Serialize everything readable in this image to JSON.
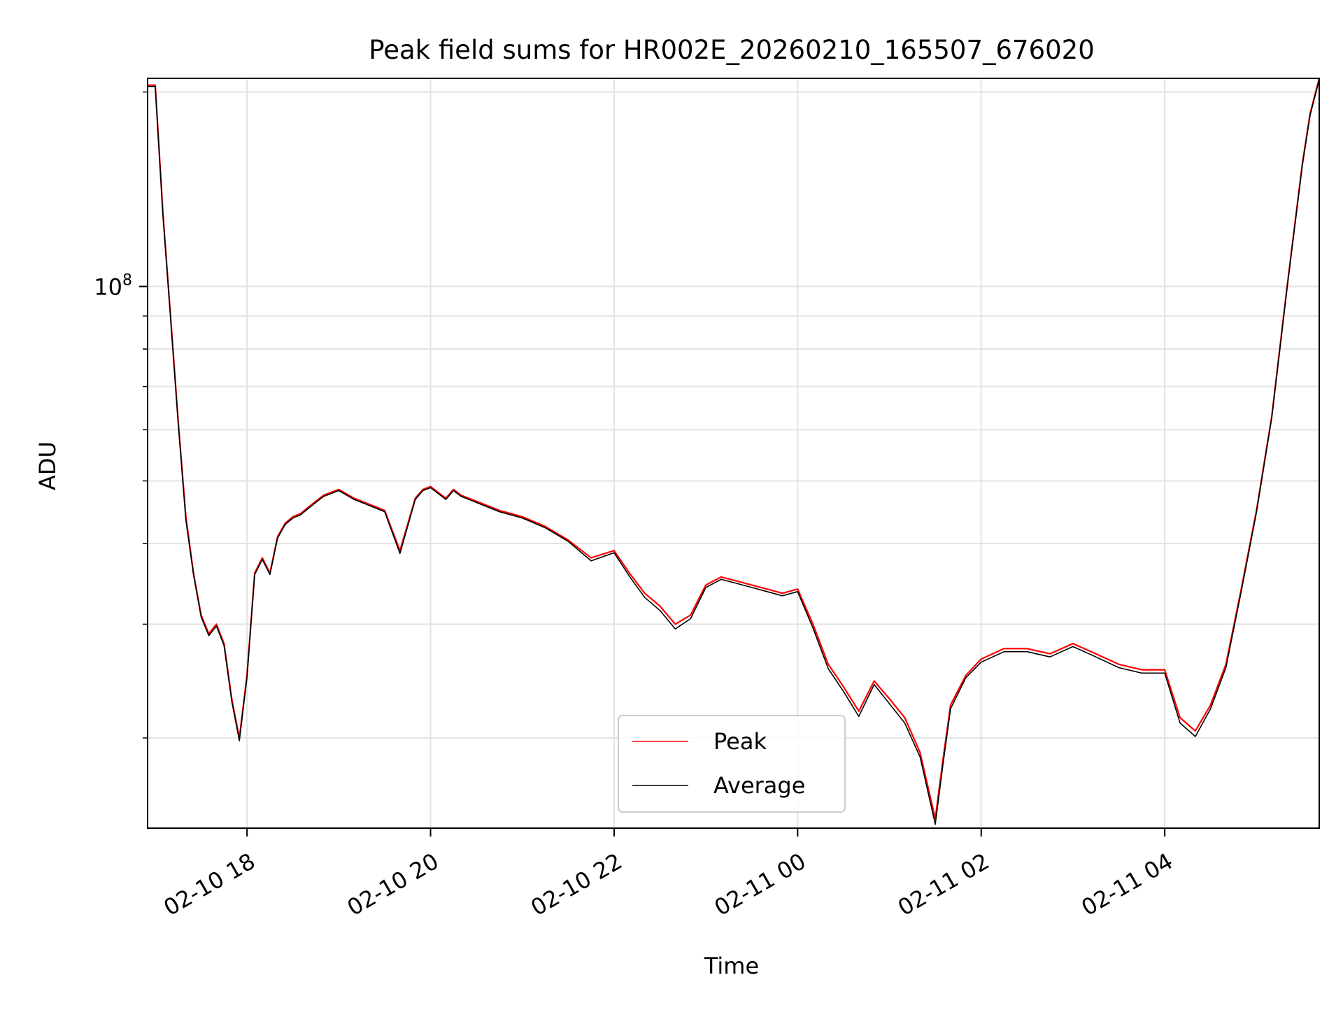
{
  "chart_data": {
    "type": "line",
    "title": "Peak field sums for HR002E_20260210_165507_676020",
    "xlabel": "Time",
    "ylabel": "ADU",
    "yscale": "log",
    "xlim": [
      "2026-02-10 16:55",
      "2026-02-11 05:41"
    ],
    "ylim": [
      14500000,
      210000000
    ],
    "x_ticks": [
      {
        "value": "2026-02-10 18:00",
        "label": "02-10 18"
      },
      {
        "value": "2026-02-10 20:00",
        "label": "02-10 20"
      },
      {
        "value": "2026-02-10 22:00",
        "label": "02-10 22"
      },
      {
        "value": "2026-02-11 00:00",
        "label": "02-11 00"
      },
      {
        "value": "2026-02-11 02:00",
        "label": "02-11 02"
      },
      {
        "value": "2026-02-11 04:00",
        "label": "02-11 04"
      }
    ],
    "y_major_ticks": [
      {
        "value": 100000000,
        "base": "10",
        "exponent": "8"
      }
    ],
    "y_minor_ticks": [
      20000000,
      30000000,
      40000000,
      50000000,
      60000000,
      70000000,
      80000000,
      90000000,
      200000000
    ],
    "grid": true,
    "legend_position": "lower-center",
    "x": [
      "2026-02-10 16:55",
      "2026-02-10 17:00",
      "2026-02-10 17:05",
      "2026-02-10 17:10",
      "2026-02-10 17:15",
      "2026-02-10 17:20",
      "2026-02-10 17:25",
      "2026-02-10 17:30",
      "2026-02-10 17:35",
      "2026-02-10 17:40",
      "2026-02-10 17:45",
      "2026-02-10 17:50",
      "2026-02-10 17:55",
      "2026-02-10 18:00",
      "2026-02-10 18:05",
      "2026-02-10 18:10",
      "2026-02-10 18:15",
      "2026-02-10 18:20",
      "2026-02-10 18:25",
      "2026-02-10 18:30",
      "2026-02-10 18:35",
      "2026-02-10 18:40",
      "2026-02-10 18:45",
      "2026-02-10 18:50",
      "2026-02-10 18:55",
      "2026-02-10 19:00",
      "2026-02-10 19:10",
      "2026-02-10 19:20",
      "2026-02-10 19:30",
      "2026-02-10 19:40",
      "2026-02-10 19:50",
      "2026-02-10 19:55",
      "2026-02-10 20:00",
      "2026-02-10 20:10",
      "2026-02-10 20:15",
      "2026-02-10 20:20",
      "2026-02-10 20:30",
      "2026-02-10 20:45",
      "2026-02-10 21:00",
      "2026-02-10 21:15",
      "2026-02-10 21:30",
      "2026-02-10 21:45",
      "2026-02-10 22:00",
      "2026-02-10 22:10",
      "2026-02-10 22:20",
      "2026-02-10 22:30",
      "2026-02-10 22:40",
      "2026-02-10 22:50",
      "2026-02-10 23:00",
      "2026-02-10 23:10",
      "2026-02-10 23:20",
      "2026-02-10 23:30",
      "2026-02-10 23:40",
      "2026-02-10 23:50",
      "2026-02-11 00:00",
      "2026-02-11 00:10",
      "2026-02-11 00:20",
      "2026-02-11 00:30",
      "2026-02-11 00:40",
      "2026-02-11 00:50",
      "2026-02-11 01:00",
      "2026-02-11 01:10",
      "2026-02-11 01:20",
      "2026-02-11 01:30",
      "2026-02-11 01:35",
      "2026-02-11 01:40",
      "2026-02-11 01:50",
      "2026-02-11 02:00",
      "2026-02-11 02:15",
      "2026-02-11 02:30",
      "2026-02-11 02:45",
      "2026-02-11 03:00",
      "2026-02-11 03:15",
      "2026-02-11 03:30",
      "2026-02-11 03:45",
      "2026-02-11 04:00",
      "2026-02-11 04:10",
      "2026-02-11 04:20",
      "2026-02-11 04:30",
      "2026-02-11 04:40",
      "2026-02-11 04:50",
      "2026-02-11 05:00",
      "2026-02-11 05:10",
      "2026-02-11 05:20",
      "2026-02-11 05:30",
      "2026-02-11 05:35",
      "2026-02-11 05:41"
    ],
    "series": [
      {
        "name": "Peak",
        "color": "#ff0000",
        "values": [
          205000000,
          205000000,
          130000000,
          90000000,
          62000000,
          44000000,
          36000000,
          31000000,
          29000000,
          30000000,
          28000000,
          23000000,
          20000000,
          25000000,
          36000000,
          38000000,
          36000000,
          41000000,
          43000000,
          44000000,
          44500000,
          45500000,
          46500000,
          47500000,
          48000000,
          48500000,
          47000000,
          46000000,
          45000000,
          39000000,
          47000000,
          48500000,
          49000000,
          47000000,
          48500000,
          47500000,
          46500000,
          45000000,
          44000000,
          42500000,
          40500000,
          38000000,
          39000000,
          36000000,
          33500000,
          32000000,
          30000000,
          31000000,
          34500000,
          35500000,
          35000000,
          34500000,
          34000000,
          33500000,
          34000000,
          30000000,
          26000000,
          24000000,
          22000000,
          24500000,
          23000000,
          21500000,
          19000000,
          15000000,
          18500000,
          22500000,
          25000000,
          26500000,
          27500000,
          27500000,
          27000000,
          28000000,
          27000000,
          26000000,
          25500000,
          25500000,
          21500000,
          20500000,
          22500000,
          26000000,
          34000000,
          45000000,
          63000000,
          100000000,
          155000000,
          185000000,
          210000000
        ]
      },
      {
        "name": "Average",
        "color": "#000000",
        "values": [
          204000000,
          204000000,
          129000000,
          89500000,
          61500000,
          43500000,
          35800000,
          30800000,
          28800000,
          29800000,
          27800000,
          22800000,
          19800000,
          24800000,
          35800000,
          37800000,
          35800000,
          40800000,
          42800000,
          43800000,
          44300000,
          45300000,
          46300000,
          47300000,
          47800000,
          48300000,
          46800000,
          45800000,
          44800000,
          38600000,
          46800000,
          48300000,
          48800000,
          46800000,
          48300000,
          47300000,
          46300000,
          44800000,
          43800000,
          42300000,
          40300000,
          37600000,
          38700000,
          35600000,
          33000000,
          31500000,
          29500000,
          30600000,
          34200000,
          35200000,
          34700000,
          34200000,
          33700000,
          33200000,
          33700000,
          29600000,
          25600000,
          23600000,
          21600000,
          24200000,
          22600000,
          21100000,
          18700000,
          14700000,
          18200000,
          22200000,
          24800000,
          26200000,
          27200000,
          27200000,
          26700000,
          27700000,
          26700000,
          25700000,
          25200000,
          25200000,
          21100000,
          20100000,
          22200000,
          25700000,
          33700000,
          44700000,
          62700000,
          99500000,
          154000000,
          184000000,
          209000000
        ]
      }
    ]
  }
}
